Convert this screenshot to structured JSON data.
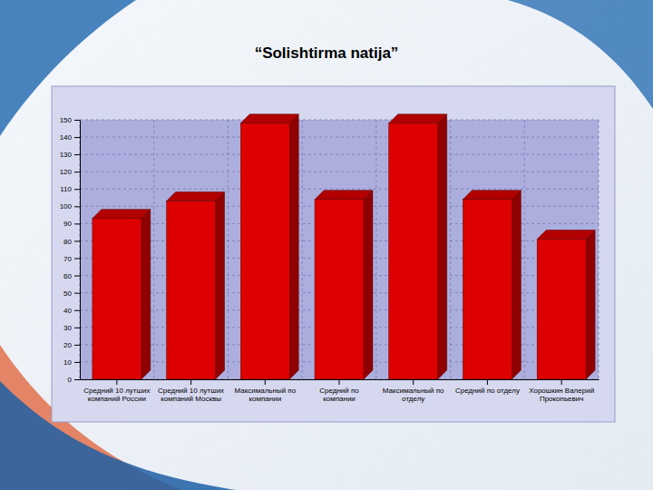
{
  "chart_data": {
    "type": "bar",
    "title": "“Solishtirma natija”",
    "categories": [
      "Средний 10 лутших компаний России",
      "Средний 10 лутших компаний Москвы",
      "Максимальный по компании",
      "Средний по компании",
      "Максимальный по отделу",
      "Средний по отделу",
      "Хорошкин Валерий Прокопьевич"
    ],
    "values": [
      93,
      103,
      148,
      104,
      148,
      104,
      81
    ],
    "color": "#dd0000",
    "ylim": [
      0,
      150
    ],
    "yticks": [
      0,
      10,
      20,
      30,
      40,
      50,
      60,
      70,
      80,
      90,
      100,
      110,
      120,
      130,
      140,
      150
    ],
    "grid": true
  }
}
